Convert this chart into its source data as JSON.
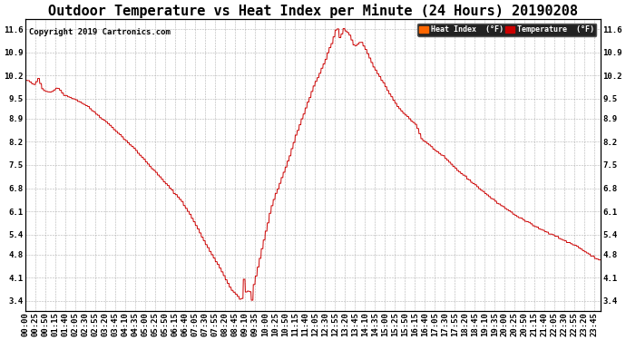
{
  "title": "Outdoor Temperature vs Heat Index per Minute (24 Hours) 20190208",
  "copyright": "Copyright 2019 Cartronics.com",
  "background_color": "#ffffff",
  "plot_bg_color": "#ffffff",
  "grid_color": "#aaaaaa",
  "line_color": "#cc0000",
  "legend_heat_index_color": "#ff6600",
  "legend_temp_color": "#cc0000",
  "legend_heat_index_label": "Heat Index  (°F)",
  "legend_temp_label": "Temperature  (°F)",
  "yticks": [
    3.4,
    4.1,
    4.8,
    5.4,
    6.1,
    6.8,
    7.5,
    8.2,
    8.9,
    9.5,
    10.2,
    10.9,
    11.6
  ],
  "ylim": [
    3.1,
    11.9
  ],
  "num_points": 1440,
  "title_fontsize": 11,
  "tick_fontsize": 6.5,
  "copyright_fontsize": 6.5
}
